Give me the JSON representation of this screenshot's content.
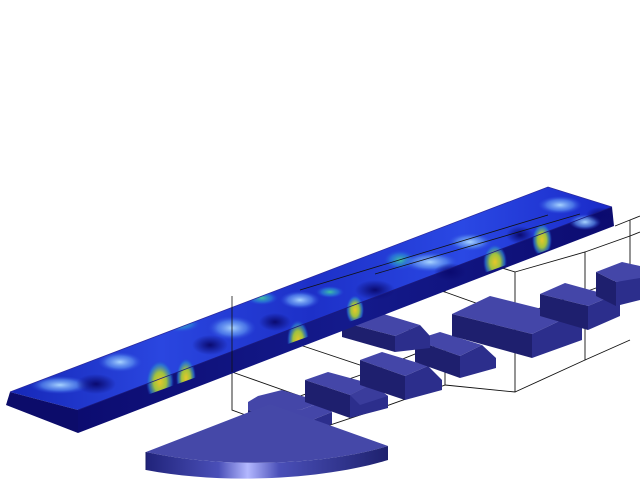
{
  "scene": {
    "background_color": "#ffffff",
    "plate_colormap": [
      "#0a0a78",
      "#1a2ad0",
      "#3a6cf0",
      "#7fb8ff",
      "#3fb89a",
      "#c8c83a",
      "#e3c62c"
    ],
    "block_colors": {
      "top": "#4446a8",
      "side": "#2c2e8c",
      "front": "#1e1f6e"
    },
    "wireframe_color": "#111111",
    "transducer_colors": {
      "top": "#4548a8",
      "rim_dark": "#20237a",
      "rim_light": "#b3b8ff"
    }
  }
}
